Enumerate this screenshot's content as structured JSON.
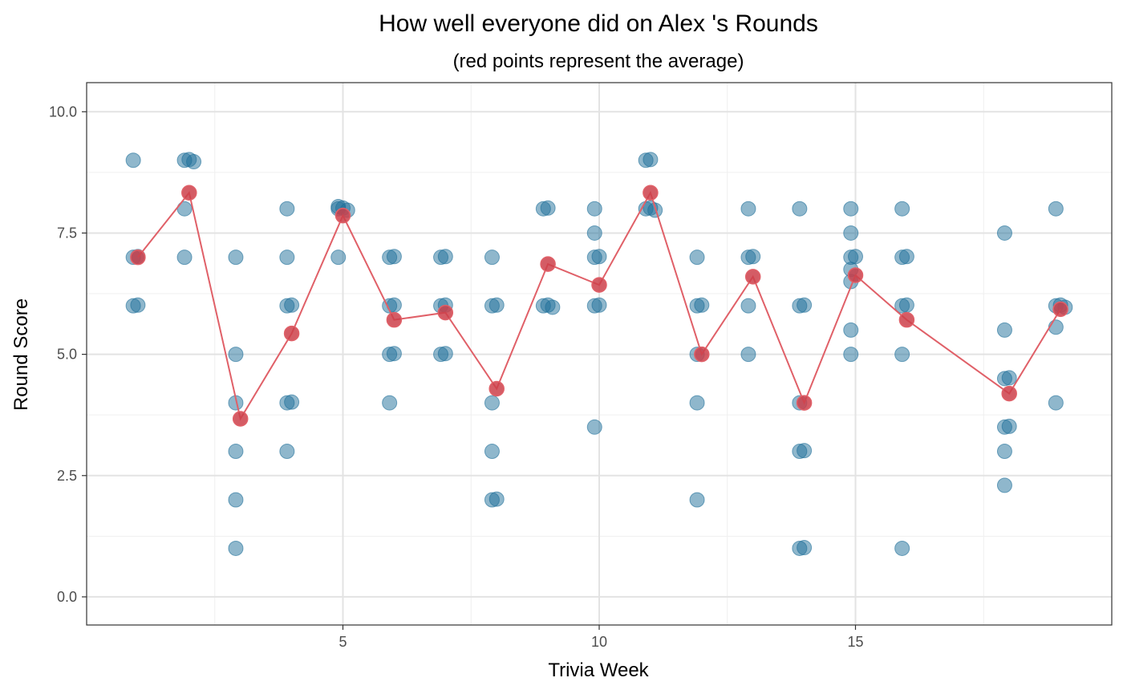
{
  "chart_data": {
    "type": "scatter",
    "title": "How well everyone did on Alex 's Rounds",
    "subtitle": "(red points represent the average)",
    "xlabel": "Trivia Week",
    "ylabel": "Round Score",
    "xlim": [
      0,
      20
    ],
    "ylim": [
      -0.58,
      10.6
    ],
    "x_ticks": [
      5,
      10,
      15
    ],
    "x_tick_labels": [
      "5",
      "10",
      "15"
    ],
    "y_ticks": [
      0,
      2.5,
      5,
      7.5,
      10
    ],
    "y_tick_labels": [
      "0.0",
      "2.5",
      "5.0",
      "7.5",
      "10.0"
    ],
    "grid": true,
    "colors": {
      "individual": "#1f6f9a",
      "average": "#cc3f4a",
      "average_line": "#e06068",
      "grid_major": "#e3e3e3",
      "grid_minor": "#efefef",
      "panel_border": "#333333"
    },
    "series": [
      {
        "type": "scatter",
        "points": [
          [
            1,
            9
          ],
          [
            1,
            7
          ],
          [
            1,
            7
          ],
          [
            1,
            6
          ],
          [
            1,
            6
          ],
          [
            2,
            9
          ],
          [
            2,
            9
          ],
          [
            2,
            9
          ],
          [
            2,
            8
          ],
          [
            2,
            7
          ],
          [
            3,
            7
          ],
          [
            3,
            5
          ],
          [
            3,
            4
          ],
          [
            3,
            3
          ],
          [
            3,
            2
          ],
          [
            3,
            1
          ],
          [
            4,
            8
          ],
          [
            4,
            7
          ],
          [
            4,
            6
          ],
          [
            4,
            6
          ],
          [
            4,
            4
          ],
          [
            4,
            4
          ],
          [
            4,
            3
          ],
          [
            5,
            8
          ],
          [
            5,
            8
          ],
          [
            5,
            8
          ],
          [
            5,
            8
          ],
          [
            5,
            7
          ],
          [
            6,
            7
          ],
          [
            6,
            7
          ],
          [
            6,
            6
          ],
          [
            6,
            6
          ],
          [
            6,
            5
          ],
          [
            6,
            5
          ],
          [
            6,
            4
          ],
          [
            7,
            7
          ],
          [
            7,
            7
          ],
          [
            7,
            6
          ],
          [
            7,
            6
          ],
          [
            7,
            5
          ],
          [
            7,
            5
          ],
          [
            8,
            7
          ],
          [
            8,
            6
          ],
          [
            8,
            6
          ],
          [
            8,
            4
          ],
          [
            8,
            3
          ],
          [
            8,
            2
          ],
          [
            8,
            2
          ],
          [
            9,
            8
          ],
          [
            9,
            8
          ],
          [
            9,
            6
          ],
          [
            9,
            6
          ],
          [
            9,
            6
          ],
          [
            10,
            8
          ],
          [
            10,
            7.5
          ],
          [
            10,
            7
          ],
          [
            10,
            7
          ],
          [
            10,
            6
          ],
          [
            10,
            6
          ],
          [
            10,
            3.5
          ],
          [
            11,
            9
          ],
          [
            11,
            9
          ],
          [
            11,
            8
          ],
          [
            11,
            8
          ],
          [
            11,
            8
          ],
          [
            12,
            7
          ],
          [
            12,
            6
          ],
          [
            12,
            6
          ],
          [
            12,
            5
          ],
          [
            12,
            4
          ],
          [
            12,
            2
          ],
          [
            13,
            8
          ],
          [
            13,
            7
          ],
          [
            13,
            7
          ],
          [
            13,
            6
          ],
          [
            13,
            5
          ],
          [
            14,
            8
          ],
          [
            14,
            6
          ],
          [
            14,
            6
          ],
          [
            14,
            4
          ],
          [
            14,
            3
          ],
          [
            14,
            3
          ],
          [
            14,
            1
          ],
          [
            14,
            1
          ],
          [
            15,
            8
          ],
          [
            15,
            7.5
          ],
          [
            15,
            7
          ],
          [
            15,
            7
          ],
          [
            15,
            6.75
          ],
          [
            15,
            6.5
          ],
          [
            15,
            5.5
          ],
          [
            15,
            5
          ],
          [
            16,
            8
          ],
          [
            16,
            7
          ],
          [
            16,
            7
          ],
          [
            16,
            6
          ],
          [
            16,
            6
          ],
          [
            16,
            5
          ],
          [
            16,
            1
          ],
          [
            18,
            7.5
          ],
          [
            18,
            5.5
          ],
          [
            18,
            4.5
          ],
          [
            18,
            4.5
          ],
          [
            18,
            3.5
          ],
          [
            18,
            3.5
          ],
          [
            18,
            3
          ],
          [
            18,
            2.3
          ],
          [
            19,
            8
          ],
          [
            19,
            6
          ],
          [
            19,
            6
          ],
          [
            19,
            6
          ],
          [
            19,
            5.56
          ],
          [
            19,
            4
          ]
        ]
      },
      {
        "type": "line",
        "points": [
          [
            1,
            7
          ],
          [
            2,
            8.33
          ],
          [
            3,
            3.67
          ],
          [
            4,
            5.43
          ],
          [
            5,
            7.86
          ],
          [
            6,
            5.71
          ],
          [
            7,
            5.86
          ],
          [
            8,
            4.29
          ],
          [
            9,
            6.86
          ],
          [
            10,
            6.43
          ],
          [
            11,
            8.33
          ],
          [
            12,
            5
          ],
          [
            13,
            6.6
          ],
          [
            14,
            4
          ],
          [
            15,
            6.63
          ],
          [
            16,
            5.71
          ],
          [
            18,
            4.19
          ],
          [
            19,
            5.93
          ]
        ]
      }
    ]
  }
}
